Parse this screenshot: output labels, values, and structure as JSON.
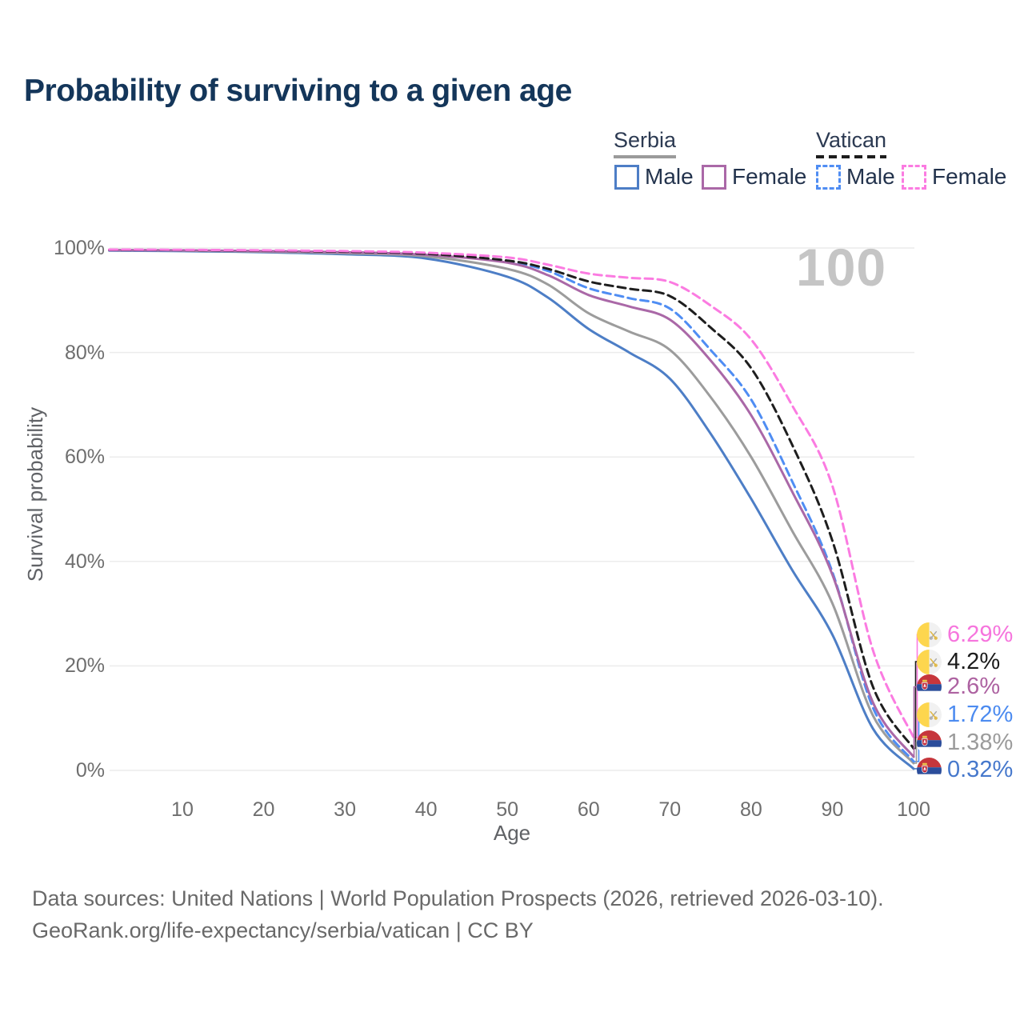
{
  "title": "Probability of surviving to a given age",
  "watermark": "100",
  "colors": {
    "title": "#14365a",
    "axis_text": "#6e6e6e",
    "gridline": "#ececec",
    "watermark": "#c5c5c5",
    "serbia_male": "#4d7ec6",
    "serbia_both": "#9c9c9c",
    "serbia_female": "#aa68a7",
    "vatican_male": "#4f8df3",
    "vatican_both": "#1e1e1e",
    "vatican_female": "#fb7be1"
  },
  "legend": {
    "groups": [
      {
        "id": "serbia",
        "label": "Serbia",
        "underline_style": "solid",
        "underline_color": "#9b9b9b",
        "items": [
          {
            "id": "serbia-male",
            "label": "Male",
            "color": "#4d7ec6",
            "dashed": false
          },
          {
            "id": "serbia-female",
            "label": "Female",
            "color": "#aa68a7",
            "dashed": false
          }
        ]
      },
      {
        "id": "vatican",
        "label": "Vatican",
        "underline_style": "dashed",
        "underline_color": "#1d1d1d",
        "items": [
          {
            "id": "vatican-male",
            "label": "Male",
            "color": "#4f8df3",
            "dashed": true
          },
          {
            "id": "vatican-female",
            "label": "Female",
            "color": "#fb7be1",
            "dashed": true
          }
        ]
      }
    ]
  },
  "chart_data": {
    "type": "line",
    "title": "Probability of surviving to a given age",
    "xlabel": "Age",
    "ylabel": "Survival probability",
    "xlim": [
      0,
      100
    ],
    "ylim": [
      0,
      100
    ],
    "x_ticks": [
      10,
      20,
      30,
      40,
      50,
      60,
      70,
      80,
      90,
      100
    ],
    "y_ticks": [
      "0%",
      "20%",
      "40%",
      "60%",
      "80%",
      "100%"
    ],
    "grid": "horizontal",
    "legend_position": "top-right",
    "x": [
      1,
      10,
      20,
      30,
      40,
      50,
      55,
      60,
      65,
      70,
      75,
      80,
      85,
      90,
      95,
      100
    ],
    "series": [
      {
        "name": "Vatican Female",
        "country": "Vatican",
        "sex": "Female",
        "color": "#fb7be1",
        "dash": true,
        "end_label": "6.29%",
        "values": [
          99.7,
          99.65,
          99.55,
          99.4,
          99.1,
          98.2,
          96.8,
          95.1,
          94.3,
          93.5,
          89.0,
          82.5,
          70.0,
          54.5,
          23.0,
          6.29
        ]
      },
      {
        "name": "Vatican (both sexes)",
        "country": "Vatican",
        "sex": "Both",
        "color": "#1e1e1e",
        "dash": true,
        "end_label": "4.2%",
        "values": [
          99.65,
          99.6,
          99.5,
          99.3,
          98.9,
          97.6,
          96.0,
          93.6,
          92.2,
          90.8,
          84.8,
          77.0,
          62.5,
          44.0,
          16.0,
          4.2
        ]
      },
      {
        "name": "Serbia Female",
        "country": "Serbia",
        "sex": "Female",
        "color": "#aa68a7",
        "dash": false,
        "end_label": "2.6%",
        "values": [
          99.6,
          99.55,
          99.4,
          99.2,
          98.7,
          97.2,
          94.8,
          91.0,
          88.8,
          86.3,
          78.5,
          68.0,
          53.5,
          37.5,
          13.0,
          2.6
        ]
      },
      {
        "name": "Vatican Male",
        "country": "Vatican",
        "sex": "Male",
        "color": "#4f8df3",
        "dash": true,
        "end_label": "1.72%",
        "values": [
          99.6,
          99.55,
          99.45,
          99.25,
          98.85,
          97.4,
          95.6,
          92.3,
          90.4,
          88.4,
          80.5,
          71.0,
          55.5,
          38.0,
          12.0,
          1.72
        ]
      },
      {
        "name": "Serbia (both sexes)",
        "country": "Serbia",
        "sex": "Both",
        "color": "#9c9c9c",
        "dash": false,
        "end_label": "1.38%",
        "values": [
          99.6,
          99.5,
          99.3,
          99.0,
          98.4,
          96.0,
          93.0,
          87.5,
          84.0,
          80.5,
          71.5,
          60.0,
          46.0,
          32.0,
          10.5,
          1.38
        ]
      },
      {
        "name": "Serbia Male",
        "country": "Serbia",
        "sex": "Male",
        "color": "#4d7ec6",
        "dash": false,
        "end_label": "0.32%",
        "values": [
          99.5,
          99.4,
          99.2,
          98.8,
          98.0,
          94.5,
          90.5,
          84.5,
          80.0,
          75.0,
          64.5,
          52.0,
          38.5,
          26.0,
          8.0,
          0.32
        ]
      }
    ]
  },
  "end_labels": [
    {
      "value": "6.29%",
      "color": "#f675dd",
      "flag": "vatican",
      "series": "Vatican Female"
    },
    {
      "value": "4.2%",
      "color": "#1b1b1b",
      "flag": "vatican",
      "series": "Vatican (both sexes)"
    },
    {
      "value": "2.6%",
      "color": "#ad62a1",
      "flag": "serbia",
      "series": "Serbia Female"
    },
    {
      "value": "1.72%",
      "color": "#4c8bf0",
      "flag": "vatican",
      "series": "Vatican Male"
    },
    {
      "value": "1.38%",
      "color": "#9b9b9b",
      "flag": "serbia",
      "series": "Serbia (both sexes)"
    },
    {
      "value": "0.32%",
      "color": "#4678cc",
      "flag": "serbia",
      "series": "Serbia Male"
    }
  ],
  "footer": {
    "line1": "Data sources: United Nations | World Population Prospects (2026, retrieved 2026-03-10).",
    "line2": "GeoRank.org/life-expectancy/serbia/vatican | CC BY"
  }
}
